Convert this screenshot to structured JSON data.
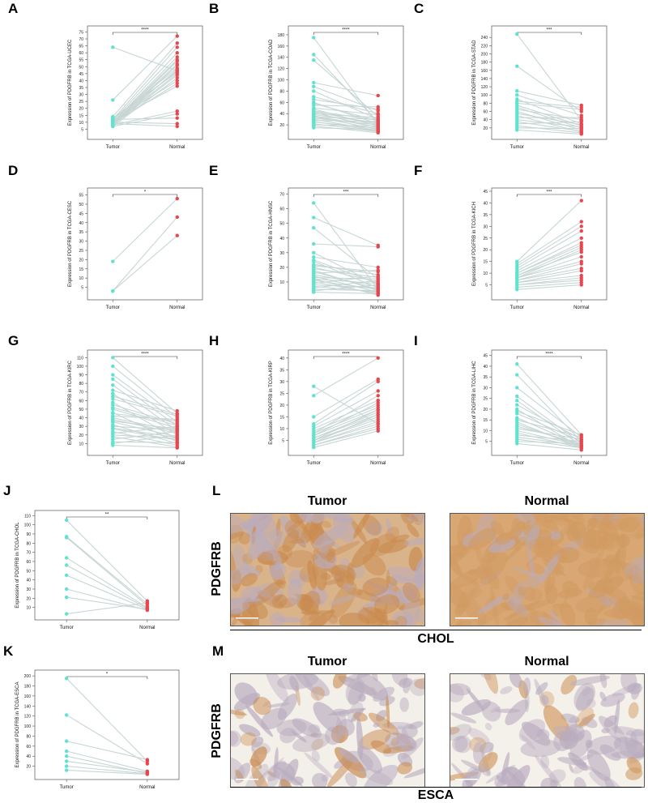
{
  "figure": {
    "y_axis_prefix": "Expression of PDGFRB in ",
    "x_categories": [
      "Tumor",
      "Normal"
    ],
    "colors": {
      "tumor": "#5fe3cf",
      "normal": "#e8474f",
      "line": "#c7d6d4",
      "axis": "#555555",
      "tumor_stain": "#c98a4e",
      "normal_stain": "#d19b63"
    }
  },
  "chart_data": [
    {
      "panel": "A",
      "type": "scatter",
      "ylabel": "Expression of PDGFRB in TCGA-UCEC",
      "significance": "****",
      "ylim": [
        0,
        77
      ],
      "ticks": [
        5,
        10,
        15,
        20,
        25,
        30,
        35,
        40,
        45,
        50,
        55,
        60,
        65,
        70,
        75
      ],
      "x": [
        "Tumor",
        "Normal"
      ],
      "pairs": [
        [
          64,
          47
        ],
        [
          26,
          72
        ],
        [
          14,
          67
        ],
        [
          12,
          64
        ],
        [
          11,
          60
        ],
        [
          10,
          57
        ],
        [
          9,
          54
        ],
        [
          8,
          51
        ],
        [
          12,
          49
        ],
        [
          10,
          47
        ],
        [
          9,
          45
        ],
        [
          8,
          44
        ],
        [
          7,
          42
        ],
        [
          11,
          40
        ],
        [
          9,
          38
        ],
        [
          8,
          18
        ],
        [
          7,
          16
        ],
        [
          12,
          13
        ],
        [
          10,
          9
        ],
        [
          9,
          7
        ],
        [
          13,
          46
        ],
        [
          11,
          36
        ],
        [
          8,
          48
        ],
        [
          10,
          55
        ],
        [
          9,
          52
        ]
      ]
    },
    {
      "panel": "B",
      "type": "scatter",
      "ylabel": "Expression of PDGFRB in TCGA-COAD",
      "significance": "****",
      "ylim": [
        0,
        190
      ],
      "ticks": [
        20,
        40,
        60,
        80,
        100,
        120,
        140,
        160,
        180
      ],
      "x": [
        "Tumor",
        "Normal"
      ],
      "pairs": [
        [
          175,
          20
        ],
        [
          145,
          25
        ],
        [
          135,
          35
        ],
        [
          95,
          72
        ],
        [
          88,
          45
        ],
        [
          80,
          30
        ],
        [
          70,
          40
        ],
        [
          60,
          22
        ],
        [
          55,
          52
        ],
        [
          48,
          18
        ],
        [
          45,
          28
        ],
        [
          42,
          15
        ],
        [
          40,
          33
        ],
        [
          38,
          24
        ],
        [
          35,
          12
        ],
        [
          32,
          20
        ],
        [
          30,
          10
        ],
        [
          28,
          26
        ],
        [
          25,
          14
        ],
        [
          22,
          8
        ],
        [
          20,
          18
        ],
        [
          18,
          6
        ],
        [
          15,
          11
        ],
        [
          50,
          38
        ],
        [
          65,
          48
        ],
        [
          44,
          21
        ],
        [
          36,
          16
        ],
        [
          26,
          9
        ],
        [
          34,
          30
        ],
        [
          58,
          27
        ]
      ]
    },
    {
      "panel": "C",
      "type": "scatter",
      "ylabel": "Expression of PDGFRB in TCGA-STAD",
      "significance": "***",
      "ylim": [
        0,
        260
      ],
      "ticks": [
        20,
        40,
        60,
        80,
        100,
        120,
        140,
        160,
        180,
        200,
        220,
        240
      ],
      "x": [
        "Tumor",
        "Normal"
      ],
      "pairs": [
        [
          248,
          38
        ],
        [
          170,
          60
        ],
        [
          110,
          75
        ],
        [
          100,
          50
        ],
        [
          90,
          30
        ],
        [
          80,
          65
        ],
        [
          70,
          20
        ],
        [
          65,
          40
        ],
        [
          60,
          15
        ],
        [
          55,
          28
        ],
        [
          50,
          10
        ],
        [
          45,
          45
        ],
        [
          40,
          22
        ],
        [
          35,
          12
        ],
        [
          30,
          35
        ],
        [
          25,
          8
        ],
        [
          20,
          18
        ],
        [
          15,
          5
        ],
        [
          85,
          70
        ],
        [
          75,
          25
        ]
      ]
    },
    {
      "panel": "D",
      "type": "scatter",
      "ylabel": "Expression of PDGFRB in TCGA-CESC",
      "significance": "*",
      "ylim": [
        0,
        57
      ],
      "ticks": [
        5,
        10,
        15,
        20,
        25,
        30,
        35,
        40,
        45,
        50,
        55
      ],
      "x": [
        "Tumor",
        "Normal"
      ],
      "pairs": [
        [
          19,
          53
        ],
        [
          3,
          43
        ],
        [
          3,
          33
        ]
      ]
    },
    {
      "panel": "E",
      "type": "scatter",
      "ylabel": "Expression of PDGFRB in TCGA-HNSC",
      "significance": "***",
      "ylim": [
        0,
        72
      ],
      "ticks": [
        10,
        20,
        30,
        40,
        50,
        60,
        70
      ],
      "x": [
        "Tumor",
        "Normal"
      ],
      "pairs": [
        [
          64,
          5
        ],
        [
          54,
          35
        ],
        [
          47,
          12
        ],
        [
          36,
          34
        ],
        [
          30,
          8
        ],
        [
          27,
          20
        ],
        [
          24,
          6
        ],
        [
          22,
          15
        ],
        [
          20,
          10
        ],
        [
          18,
          4
        ],
        [
          16,
          18
        ],
        [
          15,
          7
        ],
        [
          14,
          3
        ],
        [
          13,
          12
        ],
        [
          12,
          9
        ],
        [
          11,
          5
        ],
        [
          10,
          2
        ],
        [
          9,
          14
        ],
        [
          8,
          6
        ],
        [
          7,
          3
        ],
        [
          6,
          11
        ],
        [
          5,
          4
        ],
        [
          4,
          8
        ],
        [
          3,
          2
        ],
        [
          25,
          9
        ],
        [
          19,
          13
        ],
        [
          17,
          5
        ],
        [
          21,
          17
        ],
        [
          12,
          1
        ]
      ]
    },
    {
      "panel": "F",
      "type": "scatter",
      "ylabel": "Expression of PDGFRB in TCGA-KICH",
      "significance": "***",
      "ylim": [
        0,
        45
      ],
      "ticks": [
        5,
        10,
        15,
        20,
        25,
        30,
        35,
        40,
        45
      ],
      "x": [
        "Tumor",
        "Normal"
      ],
      "pairs": [
        [
          15,
          41
        ],
        [
          14,
          32
        ],
        [
          13,
          30
        ],
        [
          12,
          28
        ],
        [
          11,
          25
        ],
        [
          10,
          23
        ],
        [
          9,
          21
        ],
        [
          9,
          19
        ],
        [
          8,
          17
        ],
        [
          8,
          15
        ],
        [
          7,
          14
        ],
        [
          7,
          12
        ],
        [
          6,
          11
        ],
        [
          6,
          9
        ],
        [
          5,
          8
        ],
        [
          5,
          7
        ],
        [
          4,
          6
        ],
        [
          3,
          5
        ],
        [
          10,
          22
        ],
        [
          8,
          20
        ]
      ]
    },
    {
      "panel": "G",
      "type": "scatter",
      "ylabel": "Expression of PDGFRB in TCGA-KIRC",
      "significance": "****",
      "ylim": [
        0,
        115
      ],
      "ticks": [
        10,
        20,
        30,
        40,
        50,
        60,
        70,
        80,
        90,
        100,
        110
      ],
      "x": [
        "Tumor",
        "Normal"
      ],
      "pairs": [
        [
          110,
          45
        ],
        [
          100,
          40
        ],
        [
          90,
          35
        ],
        [
          85,
          30
        ],
        [
          78,
          25
        ],
        [
          72,
          48
        ],
        [
          68,
          20
        ],
        [
          62,
          42
        ],
        [
          58,
          15
        ],
        [
          55,
          33
        ],
        [
          50,
          28
        ],
        [
          46,
          12
        ],
        [
          42,
          38
        ],
        [
          38,
          22
        ],
        [
          35,
          18
        ],
        [
          32,
          10
        ],
        [
          30,
          26
        ],
        [
          27,
          14
        ],
        [
          24,
          8
        ],
        [
          22,
          30
        ],
        [
          20,
          16
        ],
        [
          18,
          6
        ],
        [
          15,
          24
        ],
        [
          12,
          11
        ],
        [
          10,
          20
        ],
        [
          8,
          5
        ],
        [
          45,
          36
        ],
        [
          65,
          44
        ],
        [
          40,
          24
        ],
        [
          28,
          17
        ],
        [
          52,
          31
        ],
        [
          36,
          27
        ]
      ]
    },
    {
      "panel": "H",
      "type": "scatter",
      "ylabel": "Expression of PDGFRB in TCGA-KIRP",
      "significance": "****",
      "ylim": [
        0,
        42
      ],
      "ticks": [
        5,
        10,
        15,
        20,
        25,
        30,
        35,
        40
      ],
      "x": [
        "Tumor",
        "Normal"
      ],
      "pairs": [
        [
          28,
          12
        ],
        [
          24,
          40
        ],
        [
          15,
          31
        ],
        [
          12,
          30
        ],
        [
          11,
          26
        ],
        [
          10,
          22
        ],
        [
          9,
          20
        ],
        [
          8,
          19
        ],
        [
          7,
          18
        ],
        [
          6,
          17
        ],
        [
          6,
          16
        ],
        [
          5,
          15
        ],
        [
          5,
          14
        ],
        [
          4,
          13
        ],
        [
          4,
          12
        ],
        [
          3,
          11
        ],
        [
          3,
          10
        ],
        [
          2,
          9
        ],
        [
          8,
          24
        ],
        [
          7,
          21
        ],
        [
          5,
          18
        ],
        [
          4,
          16
        ]
      ]
    },
    {
      "panel": "I",
      "type": "scatter",
      "ylabel": "Expression of PDGFRB in TCGA-LIHC",
      "significance": "****",
      "ylim": [
        0,
        46
      ],
      "ticks": [
        5,
        10,
        15,
        20,
        25,
        30,
        35,
        40,
        45
      ],
      "x": [
        "Tumor",
        "Normal"
      ],
      "pairs": [
        [
          41,
          8
        ],
        [
          36,
          5
        ],
        [
          30,
          7
        ],
        [
          26,
          4
        ],
        [
          24,
          3
        ],
        [
          22,
          6
        ],
        [
          20,
          2
        ],
        [
          18,
          5
        ],
        [
          16,
          3
        ],
        [
          15,
          7
        ],
        [
          14,
          2
        ],
        [
          12,
          4
        ],
        [
          11,
          6
        ],
        [
          10,
          3
        ],
        [
          9,
          2
        ],
        [
          8,
          5
        ],
        [
          7,
          3
        ],
        [
          6,
          2
        ],
        [
          5,
          4
        ],
        [
          4,
          1
        ],
        [
          19,
          8
        ],
        [
          13,
          3
        ]
      ]
    },
    {
      "panel": "J",
      "type": "scatter",
      "ylabel": "Expression of PDGFRB in TCGA-CHOL",
      "significance": "**",
      "ylim": [
        0,
        112
      ],
      "ticks": [
        10,
        20,
        30,
        40,
        50,
        60,
        70,
        80,
        90,
        100,
        110
      ],
      "x": [
        "Tumor",
        "Normal"
      ],
      "pairs": [
        [
          105,
          17
        ],
        [
          87,
          14
        ],
        [
          86,
          12
        ],
        [
          64,
          10
        ],
        [
          56,
          9
        ],
        [
          45,
          8
        ],
        [
          30,
          7
        ],
        [
          21,
          8
        ],
        [
          3,
          15
        ]
      ]
    },
    {
      "panel": "K",
      "type": "scatter",
      "ylabel": "Expression of PDGFRB in TCGA-ESCA",
      "significance": "*",
      "ylim": [
        0,
        205
      ],
      "ticks": [
        20,
        40,
        60,
        80,
        100,
        120,
        140,
        160,
        180,
        200
      ],
      "x": [
        "Tumor",
        "Normal"
      ],
      "pairs": [
        [
          195,
          30
        ],
        [
          122,
          25
        ],
        [
          70,
          33
        ],
        [
          50,
          10
        ],
        [
          40,
          6
        ],
        [
          30,
          8
        ],
        [
          20,
          5
        ],
        [
          12,
          4
        ]
      ]
    }
  ],
  "ihc": [
    {
      "panel": "L",
      "left_title": "Tumor",
      "right_title": "Normal",
      "row_label": "PDGFRB",
      "cancer": "CHOL"
    },
    {
      "panel": "M",
      "left_title": "Tumor",
      "right_title": "Normal",
      "row_label": "PDGFRB",
      "cancer": "ESCA"
    }
  ]
}
